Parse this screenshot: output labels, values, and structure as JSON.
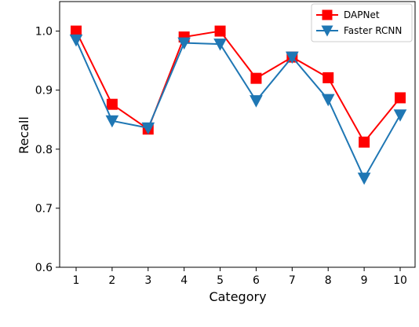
{
  "chart_data": {
    "type": "line",
    "categories": [
      "1",
      "2",
      "3",
      "4",
      "5",
      "6",
      "7",
      "8",
      "9",
      "10"
    ],
    "xlabel": "Category",
    "ylabel": "Recall",
    "ylim": [
      0.6,
      1.05
    ],
    "yticks": [
      "0.6",
      "0.7",
      "0.8",
      "0.9",
      "1.0"
    ],
    "ytick_values": [
      0.6,
      0.7,
      0.8,
      0.9,
      1.0
    ],
    "legend_position": "top-right",
    "grid": false,
    "series": [
      {
        "name": "DAPNet",
        "color": "#ff0000",
        "marker": "square",
        "values": [
          1.0,
          0.876,
          0.834,
          0.99,
          1.0,
          0.92,
          0.956,
          0.921,
          0.812,
          0.887
        ]
      },
      {
        "name": "Faster RCNN",
        "color": "#1f77b4",
        "marker": "triangle-down",
        "values": [
          0.985,
          0.848,
          0.836,
          0.98,
          0.978,
          0.882,
          0.956,
          0.884,
          0.751,
          0.858
        ]
      }
    ]
  }
}
